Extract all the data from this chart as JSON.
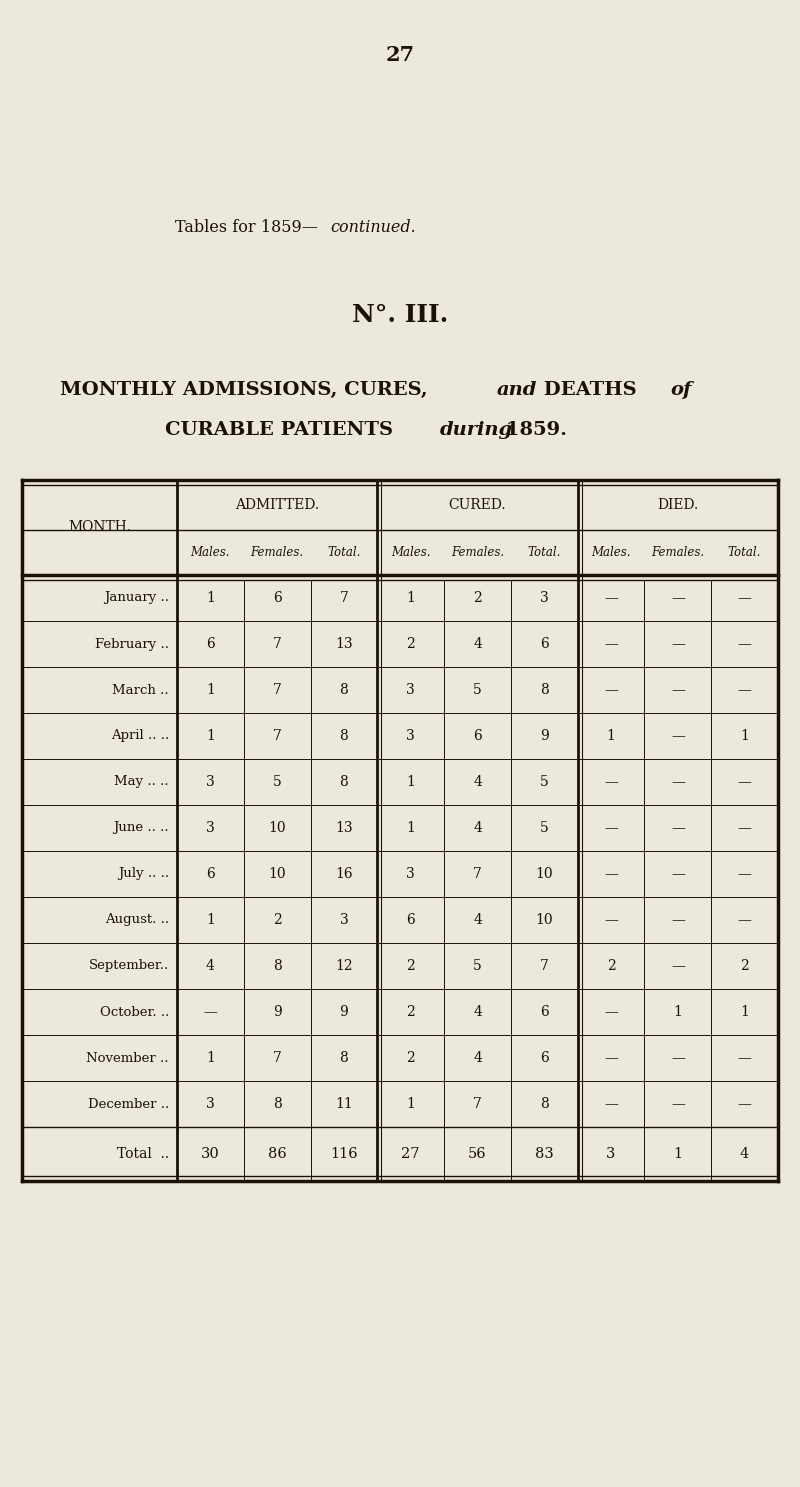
{
  "page_number": "27",
  "header_title_plain": "Tables for 1859—",
  "header_title_italic": "continued.",
  "table_number": "N°. III.",
  "main_title_line1_plain1": "MONTHLY ADMISSIONS, CURES, ",
  "main_title_line1_italic": "and",
  "main_title_line1_plain2": " DEATHS ",
  "main_title_line1_italic2": "of",
  "main_title_line2_plain": "CURABLE PATIENTS ",
  "main_title_line2_italic": "during",
  "main_title_line2_plain2": " 1859.",
  "col_groups": [
    "ADMITTED.",
    "CURED.",
    "DIED."
  ],
  "sub_cols": [
    "Males.",
    "Females.",
    "Total."
  ],
  "month_col": "MONTH.",
  "months": [
    "January",
    "February",
    "March",
    "April",
    "May",
    "June",
    "July",
    "August",
    "September",
    "October",
    "November",
    "December",
    "Total"
  ],
  "month_suffix": [
    " ..",
    " ..",
    " ..",
    " .. ..",
    " .. ..",
    " .. ..",
    " .. ..",
    ". ..",
    "..",
    ". ..",
    " ..",
    " ..",
    " .."
  ],
  "admitted": [
    [
      "1",
      "6",
      "7"
    ],
    [
      "6",
      "7",
      "13"
    ],
    [
      "1",
      "7",
      "8"
    ],
    [
      "1",
      "7",
      "8"
    ],
    [
      "3",
      "5",
      "8"
    ],
    [
      "3",
      "10",
      "13"
    ],
    [
      "6",
      "10",
      "16"
    ],
    [
      "1",
      "2",
      "3"
    ],
    [
      "4",
      "8",
      "12"
    ],
    [
      "—",
      "9",
      "9"
    ],
    [
      "1",
      "7",
      "8"
    ],
    [
      "3",
      "8",
      "11"
    ],
    [
      "30",
      "86",
      "116"
    ]
  ],
  "cured": [
    [
      "1",
      "2",
      "3"
    ],
    [
      "2",
      "4",
      "6"
    ],
    [
      "3",
      "5",
      "8"
    ],
    [
      "3",
      "6",
      "9"
    ],
    [
      "1",
      "4",
      "5"
    ],
    [
      "1",
      "4",
      "5"
    ],
    [
      "3",
      "7",
      "10"
    ],
    [
      "6",
      "4",
      "10"
    ],
    [
      "2",
      "5",
      "7"
    ],
    [
      "2",
      "4",
      "6"
    ],
    [
      "2",
      "4",
      "6"
    ],
    [
      "1",
      "7",
      "8"
    ],
    [
      "27",
      "56",
      "83"
    ]
  ],
  "died": [
    [
      "—",
      "—",
      "—"
    ],
    [
      "—",
      "—",
      "—"
    ],
    [
      "—",
      "—",
      "—"
    ],
    [
      "1",
      "—",
      "1"
    ],
    [
      "—",
      "—",
      "—"
    ],
    [
      "—",
      "—",
      "—"
    ],
    [
      "—",
      "—",
      "—"
    ],
    [
      "—",
      "—",
      "—"
    ],
    [
      "2",
      "—",
      "2"
    ],
    [
      "—",
      "1",
      "1"
    ],
    [
      "—",
      "—",
      "—"
    ],
    [
      "—",
      "—",
      "—"
    ],
    [
      "3",
      "1",
      "4"
    ]
  ],
  "bg_color": "#ede8dc",
  "text_color": "#1a1208",
  "line_color": "#1a1208"
}
